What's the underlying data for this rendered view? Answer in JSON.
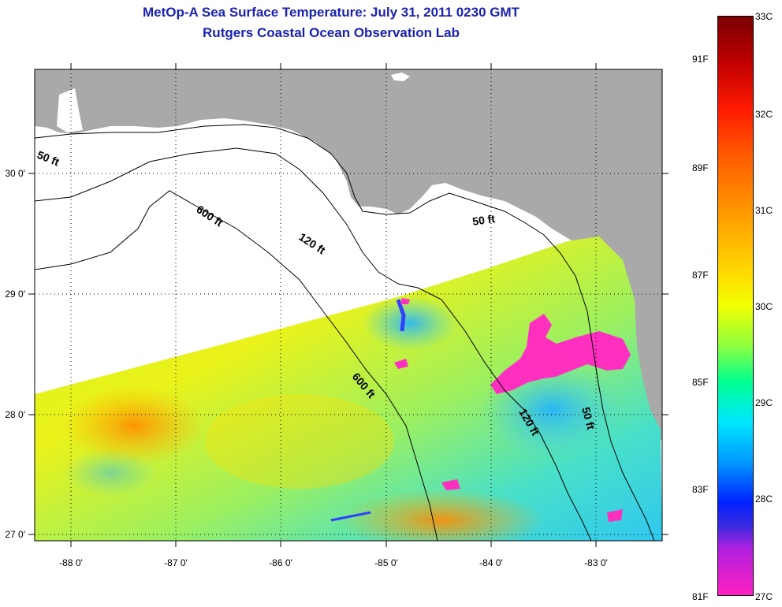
{
  "title_line1": "MetOp-A Sea Surface Temperature:  July 31, 2011 0230 GMT",
  "title_line2": "Rutgers Coastal Ocean Observation Lab",
  "x_ticks": [
    "-88 0'",
    "-87 0'",
    "-86 0'",
    "-85 0'",
    "-84 0'",
    "-83 0'"
  ],
  "y_ticks": [
    "30 0'",
    "29 0'",
    "28 0'",
    "27 0'"
  ],
  "contours": {
    "nw_50": "50 ft",
    "ne_50": "50 ft",
    "se_50": "50 ft",
    "nw_600": "600 ft",
    "mid_600": "600 ft",
    "nw_120": "120 ft",
    "se_120": "120 ft"
  },
  "colorbar": {
    "fahrenheit": [
      "91F",
      "89F",
      "87F",
      "85F",
      "83F",
      "81F"
    ],
    "celsius": [
      "33C",
      "32C",
      "31C",
      "30C",
      "29C",
      "28C",
      "27C"
    ]
  },
  "colors": {
    "title": "#1a23b0",
    "land": "#a9a9a9",
    "no_data": "#ffffff",
    "warm": "#ff9a00",
    "mid": "#e8f020",
    "cool": "#30d8e0",
    "cold": "#2060ff",
    "cloud": "#ff30c0"
  }
}
